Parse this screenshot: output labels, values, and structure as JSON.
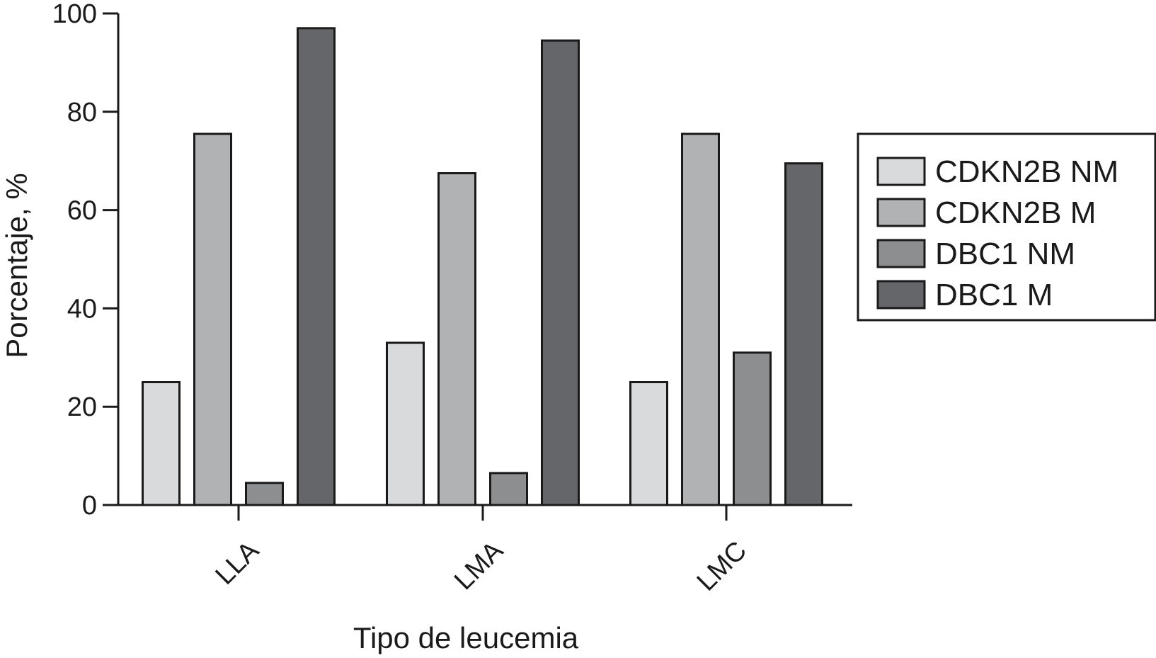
{
  "chart_data": {
    "type": "bar",
    "title": "",
    "xlabel": "Tipo de leucemia",
    "ylabel": "Porcentaje, %",
    "ylim": [
      0,
      100
    ],
    "yticks": [
      0,
      20,
      40,
      60,
      80,
      100
    ],
    "categories": [
      "LLA",
      "LMA",
      "LMC"
    ],
    "series": [
      {
        "name": "CDKN2B NM",
        "color": "#d9dadc",
        "values": [
          25,
          33,
          25
        ]
      },
      {
        "name": "CDKN2B M",
        "color": "#b1b2b4",
        "values": [
          75.5,
          67.5,
          75.5
        ]
      },
      {
        "name": "DBC1 NM",
        "color": "#8d8e90",
        "values": [
          4.5,
          6.5,
          31
        ]
      },
      {
        "name": "DBC1 M",
        "color": "#65666a",
        "values": [
          97,
          94.5,
          69.5
        ]
      }
    ],
    "legend_position": "right",
    "grid": false
  }
}
